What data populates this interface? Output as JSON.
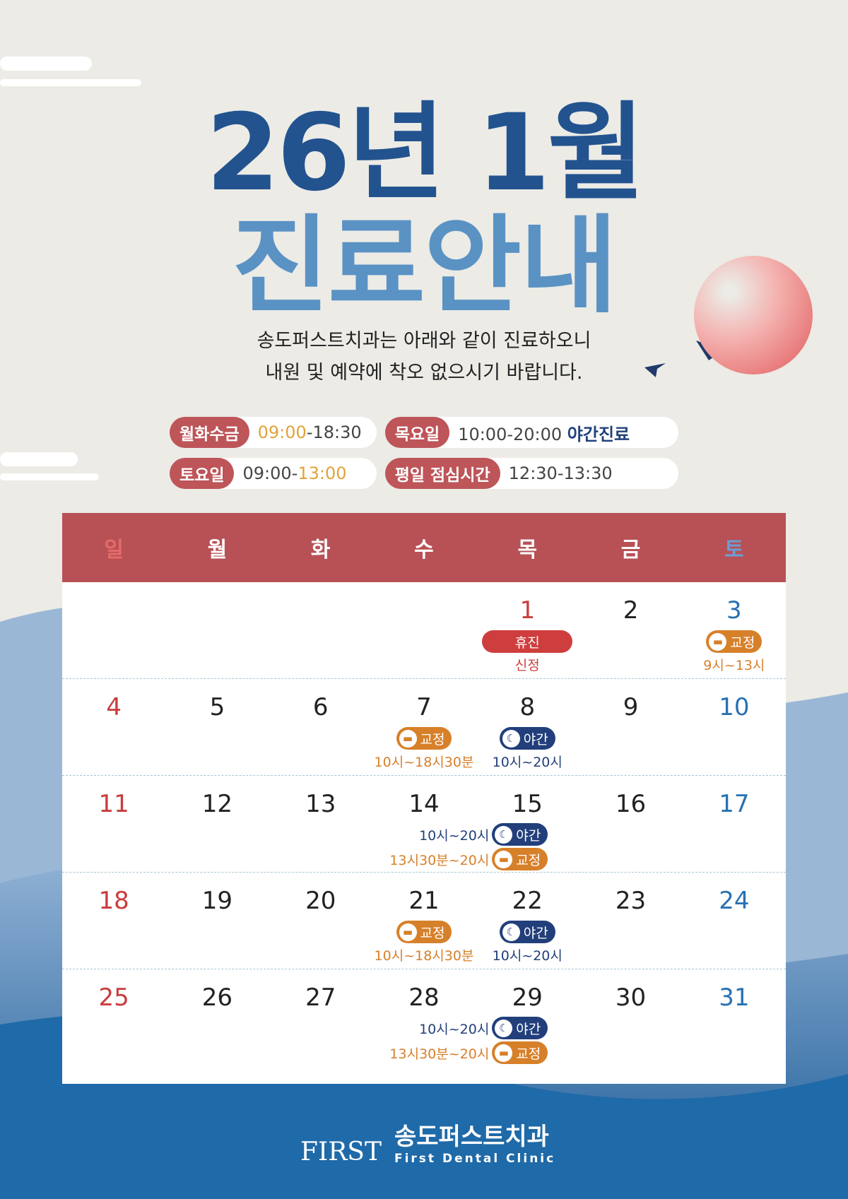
{
  "title": {
    "line1": "26년 1월",
    "line2": "진료안내"
  },
  "subtitle": {
    "line1": "송도퍼스트치과는 아래와 같이 진료하오니",
    "line2": "내원 및 예약에 착오 없으시기 바랍니다."
  },
  "hours": [
    {
      "label": "월화수금",
      "parts": [
        {
          "text": "09:00",
          "style": "or"
        },
        {
          "text": "-18:30",
          "style": ""
        }
      ]
    },
    {
      "label": "목요일",
      "parts": [
        {
          "text": "10:00-20:00 ",
          "style": ""
        },
        {
          "text": "야간진료",
          "style": "nav"
        }
      ]
    },
    {
      "label": "토요일",
      "parts": [
        {
          "text": "09:00-",
          "style": ""
        },
        {
          "text": "13:00",
          "style": "or"
        }
      ]
    },
    {
      "label": "평일 점심시간",
      "parts": [
        {
          "text": "12:30-13:30",
          "style": ""
        }
      ]
    }
  ],
  "calendar": {
    "weekdays": [
      "일",
      "월",
      "화",
      "수",
      "목",
      "금",
      "토"
    ],
    "weekday_colors": [
      "#e46c6a",
      "#ffffff",
      "#ffffff",
      "#ffffff",
      "#ffffff",
      "#ffffff",
      "#6a9fd6"
    ],
    "weeks": [
      [
        null,
        null,
        null,
        null,
        {
          "day": "1",
          "items": [
            {
              "type": "badge",
              "kind": "rd",
              "label": "휴진"
            },
            {
              "type": "text",
              "kind": "rd",
              "text": "신정"
            }
          ]
        },
        {
          "day": "2"
        },
        {
          "day": "3",
          "items": [
            {
              "type": "badge",
              "kind": "or",
              "icon": "braces-icon",
              "label": "교정"
            },
            {
              "type": "text",
              "kind": "or",
              "text": "9시~13시"
            }
          ]
        }
      ],
      [
        {
          "day": "4"
        },
        {
          "day": "5"
        },
        {
          "day": "6"
        },
        {
          "day": "7",
          "items": [
            {
              "type": "badge",
              "kind": "or",
              "icon": "braces-icon",
              "label": "교정"
            },
            {
              "type": "text",
              "kind": "or",
              "text": "10시~18시30분"
            }
          ]
        },
        {
          "day": "8",
          "items": [
            {
              "type": "badge",
              "kind": "nv",
              "icon": "moon-icon",
              "label": "야간"
            },
            {
              "type": "text",
              "kind": "nv",
              "text": "10시~20시"
            }
          ]
        },
        {
          "day": "9"
        },
        {
          "day": "10"
        }
      ],
      [
        {
          "day": "11"
        },
        {
          "day": "12"
        },
        {
          "day": "13"
        },
        {
          "day": "14"
        },
        {
          "day": "15",
          "items": [
            {
              "type": "inline",
              "kind": "nv",
              "icon": "moon-icon",
              "label": "야간",
              "text": "10시~20시"
            },
            {
              "type": "inline",
              "kind": "or",
              "icon": "braces-icon",
              "label": "교정",
              "text": "13시30분~20시"
            }
          ]
        },
        {
          "day": "16"
        },
        {
          "day": "17"
        }
      ],
      [
        {
          "day": "18"
        },
        {
          "day": "19"
        },
        {
          "day": "20"
        },
        {
          "day": "21",
          "items": [
            {
              "type": "badge",
              "kind": "or",
              "icon": "braces-icon",
              "label": "교정"
            },
            {
              "type": "text",
              "kind": "or",
              "text": "10시~18시30분"
            }
          ]
        },
        {
          "day": "22",
          "items": [
            {
              "type": "badge",
              "kind": "nv",
              "icon": "moon-icon",
              "label": "야간"
            },
            {
              "type": "text",
              "kind": "nv",
              "text": "10시~20시"
            }
          ]
        },
        {
          "day": "23"
        },
        {
          "day": "24"
        }
      ],
      [
        {
          "day": "25"
        },
        {
          "day": "26"
        },
        {
          "day": "27"
        },
        {
          "day": "28"
        },
        {
          "day": "29",
          "items": [
            {
              "type": "inline",
              "kind": "nv",
              "icon": "moon-icon",
              "label": "야간",
              "text": "10시~20시"
            },
            {
              "type": "inline",
              "kind": "or",
              "icon": "braces-icon",
              "label": "교정",
              "text": "13시30분~20시"
            }
          ]
        },
        {
          "day": "30"
        },
        {
          "day": "31"
        }
      ]
    ]
  },
  "footer": {
    "logo_en": "FIRST",
    "name": "송도퍼스트치과",
    "name_en": "First Dental Clinic"
  },
  "colors": {
    "title_dark": "#22538f",
    "title_light": "#5a92c4",
    "header_red": "#b85156",
    "orange": "#d7802a",
    "navy": "#223f7b"
  }
}
